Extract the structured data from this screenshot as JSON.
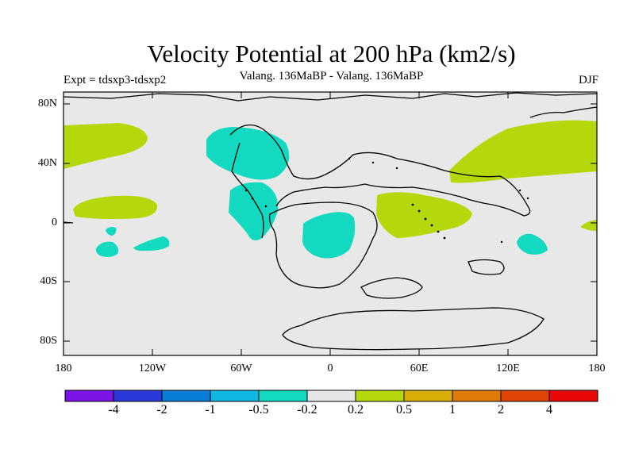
{
  "title": "Velocity Potential at 200 hPa (km2/s)",
  "subtitle": "Valang. 136MaBP - Valang. 136MaBP",
  "expt": "Expt = tdsxp3-tdsxp2",
  "season": "DJF",
  "y_axis_labels": [
    "80N",
    "40N",
    "0",
    "40S",
    "80S"
  ],
  "x_axis_labels": [
    "180",
    "120W",
    "60W",
    "0",
    "60E",
    "120E",
    "180"
  ],
  "colorbar": {
    "labels": [
      "-4",
      "-2",
      "-1",
      "-0.5",
      "-0.2",
      "0.2",
      "0.5",
      "1",
      "2",
      "4"
    ],
    "colors": [
      "#7b12e6",
      "#2a3ad8",
      "#0a7ed6",
      "#10b7e0",
      "#12d9c0",
      "#e6e6e6",
      "#b5d80c",
      "#d8ad06",
      "#e07a06",
      "#e04406",
      "#e80808"
    ]
  },
  "colors": {
    "background_field": "#e8e8e8",
    "negative_field": "#12d9c0",
    "positive_field": "#b5d80c"
  }
}
